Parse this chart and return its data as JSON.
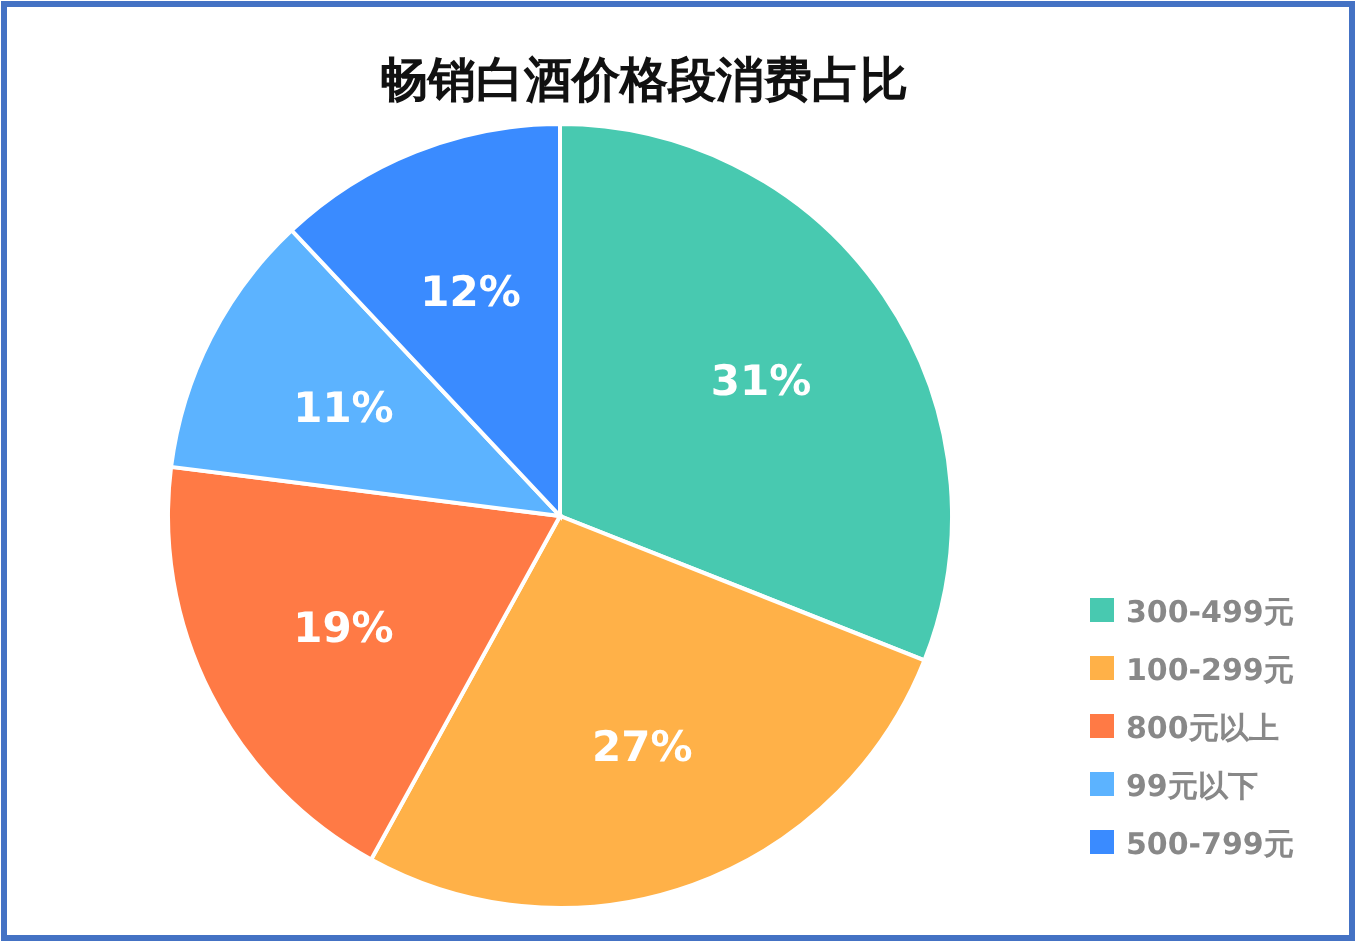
{
  "chart_data": {
    "type": "pie",
    "title": "畅销白酒价格段消费占比",
    "categories": [
      "300-499元",
      "100-299元",
      "800元以上",
      "99元以下",
      "500-799元"
    ],
    "values": [
      31,
      27,
      19,
      11,
      12
    ],
    "colors": [
      "#48c9b0",
      "#ffb148",
      "#ff7a45",
      "#5cb3ff",
      "#3a8bff"
    ],
    "value_labels": [
      "31%",
      "27%",
      "19%",
      "11%",
      "12%"
    ],
    "legend": "bottom right"
  }
}
